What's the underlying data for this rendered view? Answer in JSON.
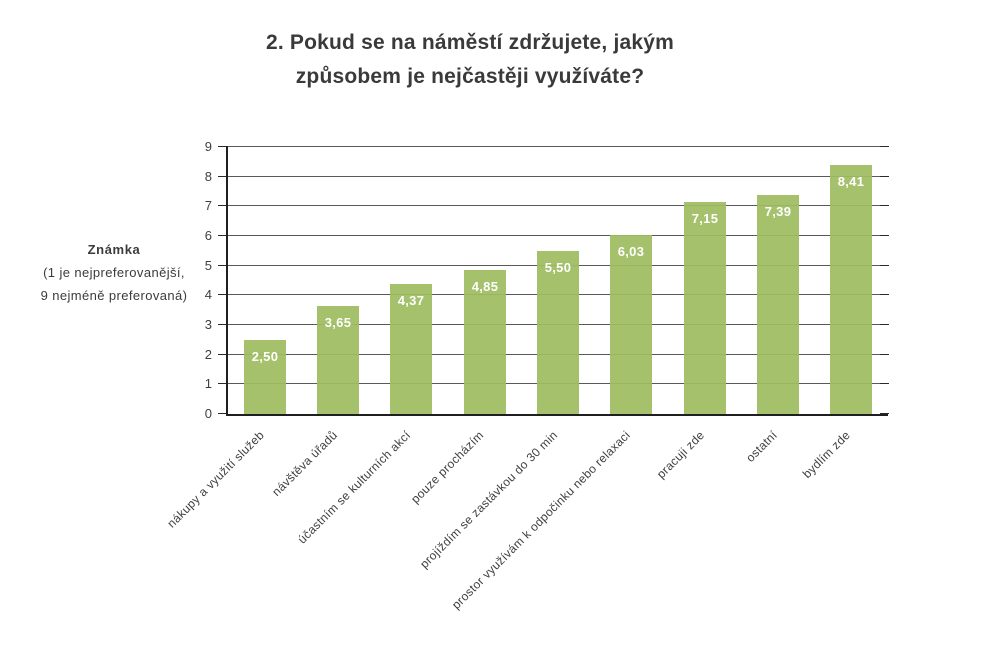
{
  "title": {
    "line1": "2. Pokud se na náměstí zdržujete, jakým",
    "line2": "způsobem je nejčastěji využíváte?"
  },
  "y_axis": {
    "label_bold": "Známka",
    "label_line2": "(1 je nejpreferovanější,",
    "label_line3": "9 nejméně preferovaná)"
  },
  "chart_data": {
    "type": "bar",
    "title": "2. Pokud se na náměstí zdržujete, jakým způsobem je nejčastěji využíváte?",
    "ylabel": "Známka (1 je nejpreferovanější, 9 nejméně preferovaná)",
    "xlabel": "",
    "categories": [
      "nákupy a využití služeb",
      "návštěva úřadů",
      "účastním se kulturních akcí",
      "pouze procházím",
      "projíždím se zastávkou do 30 min",
      "prostor využívám k odpočinku nebo relaxaci",
      "pracuji zde",
      "ostatní",
      "bydlím zde"
    ],
    "values": [
      2.5,
      3.65,
      4.37,
      4.85,
      5.5,
      6.03,
      7.15,
      7.39,
      8.41
    ],
    "value_labels": [
      "2,50",
      "3,65",
      "4,37",
      "4,85",
      "5,50",
      "6,03",
      "7,15",
      "7,39",
      "8,41"
    ],
    "ylim": [
      0,
      9
    ],
    "ytick_step": 1,
    "grid": true,
    "legend": false,
    "bar_color": "#9ebc60",
    "value_label_color": "#ffffff"
  },
  "colors": {
    "background": "#ffffff",
    "axis": "#1f1f1f",
    "gridline": "#595959",
    "title_text": "#3a3a3a",
    "label_text": "#3f3f3f"
  }
}
